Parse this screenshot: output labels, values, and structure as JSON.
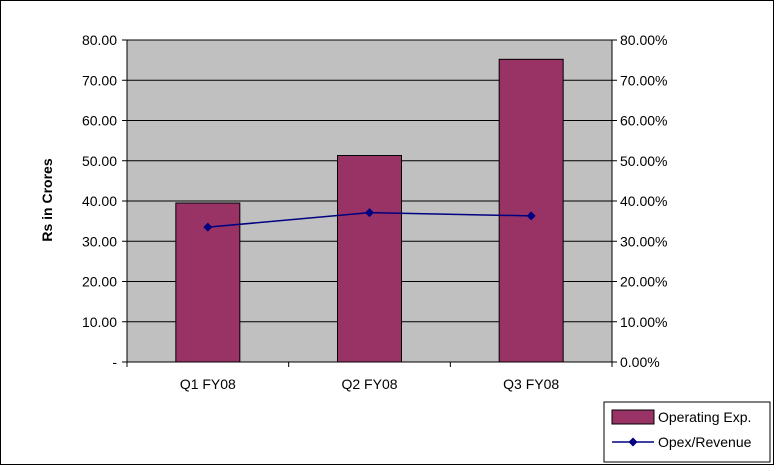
{
  "chart_data": {
    "type": "bar",
    "categories": [
      "Q1 FY08",
      "Q2 FY08",
      "Q3 FY08"
    ],
    "ylabel": "Rs in Crores",
    "ylim": [
      0,
      80
    ],
    "y2lim": [
      0,
      0.8
    ],
    "y_ticks": [
      "-",
      "10.00",
      "20.00",
      "30.00",
      "40.00",
      "50.00",
      "60.00",
      "70.00",
      "80.00"
    ],
    "y2_ticks": [
      "0.00%",
      "10.00%",
      "20.00%",
      "30.00%",
      "40.00%",
      "50.00%",
      "60.00%",
      "70.00%",
      "80.00%"
    ],
    "grid": true,
    "legend_position": "bottom-right",
    "series": [
      {
        "name": "Operating Exp.",
        "type": "bar",
        "axis": "left",
        "color": "#993366",
        "values": [
          39.5,
          51.3,
          75.2
        ]
      },
      {
        "name": "Opex/Revenue",
        "type": "line",
        "axis": "right",
        "color": "#000080",
        "values": [
          0.335,
          0.371,
          0.363
        ]
      }
    ],
    "plot_background": "#c0c0c0"
  }
}
